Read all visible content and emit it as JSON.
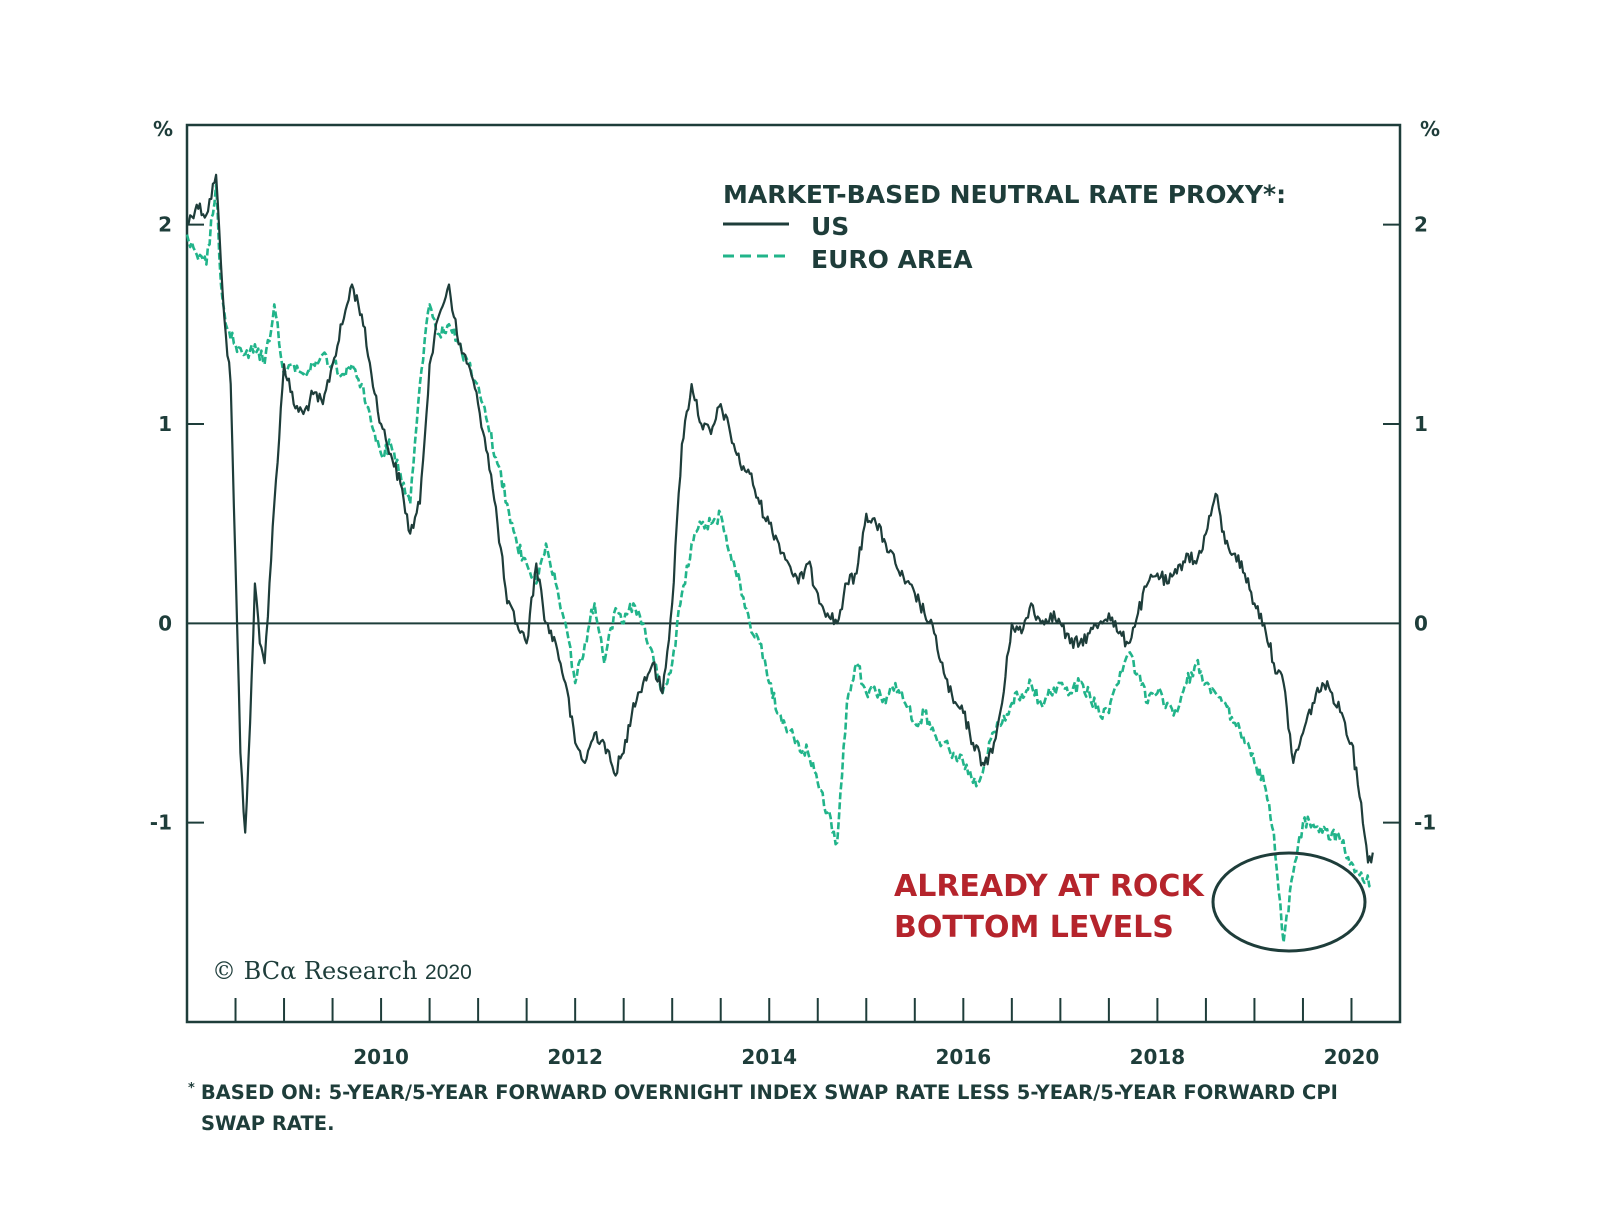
{
  "chart_data": {
    "type": "line",
    "legend_title": "MARKET-BASED NEUTRAL RATE PROXY*:",
    "y_unit_left": "%",
    "y_unit_right": "%",
    "ylim": [
      -2,
      2.5
    ],
    "xlim": [
      2008.0,
      2020.5
    ],
    "x_ticks": [
      2010,
      2012,
      2014,
      2016,
      2018,
      2020
    ],
    "x_tick_labels": [
      "2010",
      "2012",
      "2014",
      "2016",
      "2018",
      "2020"
    ],
    "y_ticks": [
      2,
      1,
      0,
      -1
    ],
    "y_tick_labels": [
      "2",
      "1",
      "0",
      "-1"
    ],
    "zero_line": true,
    "legend_position": "top-right",
    "colors": {
      "US": "#1e3d3a",
      "EURO AREA": "#21b48a",
      "annotation": "#b5242c"
    },
    "series": [
      {
        "name": "US",
        "style": "solid",
        "x": [
          2008.0,
          2008.1,
          2008.2,
          2008.3,
          2008.35,
          2008.4,
          2008.45,
          2008.5,
          2008.55,
          2008.6,
          2008.65,
          2008.7,
          2008.75,
          2008.8,
          2008.9,
          2009.0,
          2009.1,
          2009.2,
          2009.3,
          2009.4,
          2009.5,
          2009.6,
          2009.7,
          2009.8,
          2009.9,
          2010.0,
          2010.1,
          2010.2,
          2010.3,
          2010.4,
          2010.5,
          2010.6,
          2010.7,
          2010.8,
          2010.9,
          2011.0,
          2011.1,
          2011.2,
          2011.3,
          2011.4,
          2011.5,
          2011.6,
          2011.7,
          2011.8,
          2011.9,
          2012.0,
          2012.1,
          2012.2,
          2012.3,
          2012.4,
          2012.5,
          2012.6,
          2012.7,
          2012.8,
          2012.9,
          2013.0,
          2013.1,
          2013.2,
          2013.3,
          2013.4,
          2013.5,
          2013.6,
          2013.7,
          2013.8,
          2013.9,
          2014.0,
          2014.1,
          2014.2,
          2014.3,
          2014.4,
          2014.5,
          2014.6,
          2014.7,
          2014.8,
          2014.9,
          2015.0,
          2015.1,
          2015.2,
          2015.3,
          2015.4,
          2015.5,
          2015.6,
          2015.7,
          2015.8,
          2015.9,
          2016.0,
          2016.1,
          2016.2,
          2016.3,
          2016.4,
          2016.5,
          2016.6,
          2016.7,
          2016.8,
          2016.9,
          2017.0,
          2017.1,
          2017.2,
          2017.3,
          2017.4,
          2017.5,
          2017.6,
          2017.7,
          2017.8,
          2017.9,
          2018.0,
          2018.1,
          2018.2,
          2018.3,
          2018.4,
          2018.5,
          2018.6,
          2018.7,
          2018.8,
          2018.9,
          2019.0,
          2019.1,
          2019.2,
          2019.3,
          2019.4,
          2019.5,
          2019.6,
          2019.7,
          2019.8,
          2019.9,
          2020.0,
          2020.1,
          2020.17,
          2020.22
        ],
        "values": [
          2.0,
          2.1,
          2.05,
          2.25,
          1.8,
          1.45,
          1.2,
          0.3,
          -0.65,
          -1.05,
          -0.5,
          0.2,
          -0.1,
          -0.2,
          0.6,
          1.3,
          1.1,
          1.05,
          1.15,
          1.1,
          1.3,
          1.5,
          1.7,
          1.55,
          1.25,
          1.0,
          0.85,
          0.7,
          0.45,
          0.6,
          1.3,
          1.55,
          1.7,
          1.4,
          1.3,
          1.1,
          0.85,
          0.5,
          0.1,
          0.0,
          -0.1,
          0.3,
          0.0,
          -0.1,
          -0.3,
          -0.6,
          -0.7,
          -0.55,
          -0.6,
          -0.75,
          -0.65,
          -0.4,
          -0.3,
          -0.2,
          -0.35,
          0.1,
          0.9,
          1.2,
          1.0,
          0.95,
          1.1,
          0.95,
          0.8,
          0.75,
          0.6,
          0.5,
          0.4,
          0.3,
          0.2,
          0.3,
          0.15,
          0.05,
          0.0,
          0.2,
          0.25,
          0.55,
          0.5,
          0.4,
          0.3,
          0.2,
          0.15,
          0.05,
          -0.05,
          -0.25,
          -0.4,
          -0.45,
          -0.6,
          -0.7,
          -0.65,
          -0.4,
          0.0,
          -0.05,
          0.1,
          0.0,
          0.05,
          0.0,
          -0.1,
          -0.1,
          -0.05,
          0.0,
          0.05,
          -0.05,
          -0.1,
          0.05,
          0.2,
          0.25,
          0.2,
          0.25,
          0.35,
          0.3,
          0.45,
          0.65,
          0.4,
          0.35,
          0.25,
          0.1,
          0.0,
          -0.2,
          -0.3,
          -0.7,
          -0.55,
          -0.4,
          -0.3,
          -0.35,
          -0.45,
          -0.6,
          -0.9,
          -1.2,
          -1.15
        ]
      },
      {
        "name": "EURO AREA",
        "style": "dashed",
        "x": [
          2008.0,
          2008.1,
          2008.2,
          2008.3,
          2008.35,
          2008.4,
          2008.5,
          2008.6,
          2008.7,
          2008.8,
          2008.9,
          2009.0,
          2009.1,
          2009.2,
          2009.3,
          2009.4,
          2009.5,
          2009.6,
          2009.7,
          2009.8,
          2009.9,
          2010.0,
          2010.1,
          2010.2,
          2010.3,
          2010.4,
          2010.5,
          2010.6,
          2010.7,
          2010.8,
          2010.9,
          2011.0,
          2011.1,
          2011.2,
          2011.3,
          2011.4,
          2011.5,
          2011.6,
          2011.7,
          2011.8,
          2011.9,
          2012.0,
          2012.1,
          2012.2,
          2012.3,
          2012.4,
          2012.5,
          2012.6,
          2012.7,
          2012.8,
          2012.9,
          2013.0,
          2013.1,
          2013.2,
          2013.3,
          2013.4,
          2013.5,
          2013.6,
          2013.7,
          2013.8,
          2013.9,
          2014.0,
          2014.1,
          2014.2,
          2014.3,
          2014.4,
          2014.5,
          2014.6,
          2014.7,
          2014.8,
          2014.9,
          2015.0,
          2015.1,
          2015.2,
          2015.3,
          2015.4,
          2015.5,
          2015.6,
          2015.7,
          2015.8,
          2015.9,
          2016.0,
          2016.1,
          2016.2,
          2016.3,
          2016.4,
          2016.5,
          2016.6,
          2016.7,
          2016.8,
          2016.9,
          2017.0,
          2017.1,
          2017.2,
          2017.3,
          2017.4,
          2017.5,
          2017.6,
          2017.7,
          2017.8,
          2017.9,
          2018.0,
          2018.1,
          2018.2,
          2018.3,
          2018.4,
          2018.5,
          2018.6,
          2018.7,
          2018.8,
          2018.9,
          2019.0,
          2019.1,
          2019.2,
          2019.3,
          2019.4,
          2019.5,
          2019.6,
          2019.7,
          2019.8,
          2019.9,
          2020.0,
          2020.1,
          2020.15,
          2020.2
        ],
        "values": [
          1.95,
          1.85,
          1.8,
          2.2,
          1.7,
          1.5,
          1.4,
          1.35,
          1.4,
          1.3,
          1.6,
          1.25,
          1.3,
          1.25,
          1.3,
          1.35,
          1.3,
          1.25,
          1.3,
          1.2,
          1.0,
          0.85,
          0.9,
          0.75,
          0.6,
          1.2,
          1.6,
          1.45,
          1.5,
          1.4,
          1.3,
          1.2,
          1.0,
          0.8,
          0.6,
          0.4,
          0.3,
          0.2,
          0.4,
          0.2,
          0.0,
          -0.3,
          -0.1,
          0.1,
          -0.2,
          0.05,
          0.0,
          0.1,
          0.0,
          -0.15,
          -0.35,
          -0.2,
          0.15,
          0.4,
          0.5,
          0.5,
          0.55,
          0.35,
          0.2,
          0.0,
          -0.1,
          -0.3,
          -0.45,
          -0.55,
          -0.6,
          -0.65,
          -0.8,
          -0.95,
          -1.1,
          -0.4,
          -0.2,
          -0.35,
          -0.35,
          -0.4,
          -0.3,
          -0.4,
          -0.5,
          -0.45,
          -0.55,
          -0.6,
          -0.65,
          -0.7,
          -0.8,
          -0.75,
          -0.55,
          -0.5,
          -0.4,
          -0.35,
          -0.3,
          -0.4,
          -0.35,
          -0.3,
          -0.35,
          -0.3,
          -0.35,
          -0.45,
          -0.45,
          -0.3,
          -0.15,
          -0.25,
          -0.4,
          -0.35,
          -0.4,
          -0.45,
          -0.3,
          -0.2,
          -0.3,
          -0.35,
          -0.4,
          -0.5,
          -0.6,
          -0.7,
          -0.8,
          -1.05,
          -1.6,
          -1.25,
          -1.0,
          -1.0,
          -1.05,
          -1.05,
          -1.1,
          -1.2,
          -1.25,
          -1.3,
          -1.3
        ]
      }
    ]
  },
  "annotation": {
    "line1": "ALREADY AT ROCK",
    "line2": "BOTTOM LEVELS"
  },
  "copyright": {
    "symbol": "©",
    "brand": "BCα Research",
    "year": "2020"
  },
  "footnote": {
    "marker": "*",
    "line1": "BASED ON: 5-YEAR/5-YEAR FORWARD OVERNIGHT INDEX SWAP RATE LESS 5-YEAR/5-YEAR FORWARD CPI",
    "line2": "SWAP RATE."
  }
}
